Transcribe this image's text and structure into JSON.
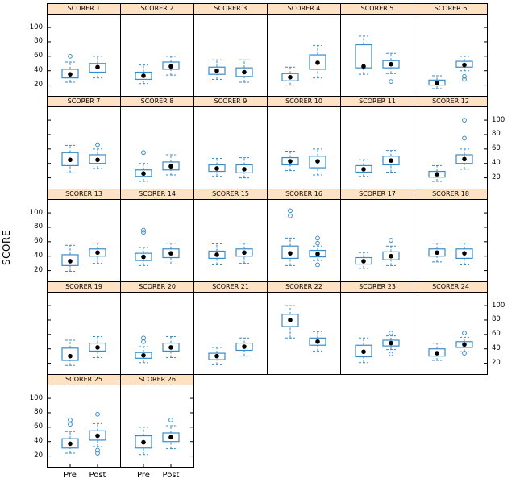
{
  "chart_data": {
    "type": "boxplot",
    "title": "",
    "ylabel": "SCORE",
    "x_categories": [
      "Pre",
      "Post"
    ],
    "y_ticks": [
      20,
      40,
      60,
      80,
      100
    ],
    "y_range": [
      5,
      118
    ],
    "columns": 6,
    "legend": "none",
    "strip_color": "#ffe2c3",
    "box_color": "#3a8bc7",
    "median_color": "#000000",
    "panels": [
      {
        "label": "SCORER 1",
        "pre": {
          "low": 24,
          "q1": 30,
          "med": 35,
          "q3": 42,
          "high": 52,
          "outliers": [
            60
          ]
        },
        "post": {
          "low": 30,
          "q1": 38,
          "med": 45,
          "q3": 50,
          "high": 60,
          "outliers": []
        }
      },
      {
        "label": "SCORER 2",
        "pre": {
          "low": 22,
          "q1": 28,
          "med": 33,
          "q3": 38,
          "high": 48,
          "outliers": []
        },
        "post": {
          "low": 34,
          "q1": 42,
          "med": 46,
          "q3": 52,
          "high": 60,
          "outliers": []
        }
      },
      {
        "label": "SCORER 3",
        "pre": {
          "low": 28,
          "q1": 35,
          "med": 40,
          "q3": 45,
          "high": 55,
          "outliers": []
        },
        "post": {
          "low": 24,
          "q1": 32,
          "med": 38,
          "q3": 44,
          "high": 55,
          "outliers": []
        }
      },
      {
        "label": "SCORER 4",
        "pre": {
          "low": 20,
          "q1": 26,
          "med": 31,
          "q3": 36,
          "high": 45,
          "outliers": []
        },
        "post": {
          "low": 30,
          "q1": 42,
          "med": 51,
          "q3": 62,
          "high": 75,
          "outliers": []
        }
      },
      {
        "label": "SCORER 5",
        "pre": {
          "low": 35,
          "q1": 44,
          "med": 46,
          "q3": 76,
          "high": 88,
          "outliers": []
        },
        "post": {
          "low": 36,
          "q1": 44,
          "med": 49,
          "q3": 54,
          "high": 64,
          "outliers": [
            25
          ]
        }
      },
      {
        "label": "SCORER 6",
        "pre": {
          "low": 15,
          "q1": 20,
          "med": 23,
          "q3": 27,
          "high": 33,
          "outliers": []
        },
        "post": {
          "low": 40,
          "q1": 45,
          "med": 48,
          "q3": 53,
          "high": 60,
          "outliers": [
            32,
            28
          ]
        }
      },
      {
        "label": "SCORER 7",
        "pre": {
          "low": 27,
          "q1": 37,
          "med": 45,
          "q3": 55,
          "high": 65,
          "outliers": []
        },
        "post": {
          "low": 33,
          "q1": 40,
          "med": 45,
          "q3": 52,
          "high": 60,
          "outliers": [
            66
          ]
        }
      },
      {
        "label": "SCORER 8",
        "pre": {
          "low": 15,
          "q1": 22,
          "med": 26,
          "q3": 31,
          "high": 40,
          "outliers": [
            55
          ]
        },
        "post": {
          "low": 24,
          "q1": 31,
          "med": 36,
          "q3": 42,
          "high": 52,
          "outliers": []
        }
      },
      {
        "label": "SCORER 9",
        "pre": {
          "low": 22,
          "q1": 29,
          "med": 33,
          "q3": 38,
          "high": 47,
          "outliers": []
        },
        "post": {
          "low": 20,
          "q1": 27,
          "med": 32,
          "q3": 38,
          "high": 48,
          "outliers": []
        }
      },
      {
        "label": "SCORER 10",
        "pre": {
          "low": 30,
          "q1": 38,
          "med": 43,
          "q3": 48,
          "high": 57,
          "outliers": []
        },
        "post": {
          "low": 24,
          "q1": 34,
          "med": 43,
          "q3": 50,
          "high": 60,
          "outliers": []
        }
      },
      {
        "label": "SCORER 11",
        "pre": {
          "low": 22,
          "q1": 28,
          "med": 32,
          "q3": 37,
          "high": 45,
          "outliers": []
        },
        "post": {
          "low": 28,
          "q1": 38,
          "med": 44,
          "q3": 50,
          "high": 58,
          "outliers": []
        }
      },
      {
        "label": "SCORER 12",
        "pre": {
          "low": 15,
          "q1": 21,
          "med": 25,
          "q3": 29,
          "high": 37,
          "outliers": []
        },
        "post": {
          "low": 32,
          "q1": 40,
          "med": 46,
          "q3": 52,
          "high": 60,
          "outliers": [
            75,
            100
          ]
        }
      },
      {
        "label": "SCORER 13",
        "pre": {
          "low": 19,
          "q1": 27,
          "med": 33,
          "q3": 42,
          "high": 55,
          "outliers": []
        },
        "post": {
          "low": 30,
          "q1": 40,
          "med": 45,
          "q3": 50,
          "high": 58,
          "outliers": []
        }
      },
      {
        "label": "SCORER 14",
        "pre": {
          "low": 27,
          "q1": 34,
          "med": 39,
          "q3": 44,
          "high": 52,
          "outliers": [
            73,
            76
          ]
        },
        "post": {
          "low": 29,
          "q1": 38,
          "med": 44,
          "q3": 50,
          "high": 58,
          "outliers": []
        }
      },
      {
        "label": "SCORER 15",
        "pre": {
          "low": 28,
          "q1": 37,
          "med": 42,
          "q3": 47,
          "high": 57,
          "outliers": []
        },
        "post": {
          "low": 30,
          "q1": 40,
          "med": 45,
          "q3": 50,
          "high": 58,
          "outliers": []
        }
      },
      {
        "label": "SCORER 16",
        "pre": {
          "low": 27,
          "q1": 37,
          "med": 44,
          "q3": 54,
          "high": 65,
          "outliers": [
            96,
            103
          ]
        },
        "post": {
          "low": 34,
          "q1": 39,
          "med": 43,
          "q3": 48,
          "high": 54,
          "outliers": [
            58,
            65,
            28
          ]
        }
      },
      {
        "label": "SCORER 17",
        "pre": {
          "low": 23,
          "q1": 29,
          "med": 33,
          "q3": 38,
          "high": 45,
          "outliers": []
        },
        "post": {
          "low": 27,
          "q1": 35,
          "med": 40,
          "q3": 46,
          "high": 54,
          "outliers": [
            62
          ]
        }
      },
      {
        "label": "SCORER 18",
        "pre": {
          "low": 32,
          "q1": 40,
          "med": 45,
          "q3": 50,
          "high": 58,
          "outliers": []
        },
        "post": {
          "low": 28,
          "q1": 37,
          "med": 44,
          "q3": 50,
          "high": 58,
          "outliers": []
        }
      },
      {
        "label": "SCORER 19",
        "pre": {
          "low": 17,
          "q1": 24,
          "med": 30,
          "q3": 41,
          "high": 52,
          "outliers": []
        },
        "post": {
          "low": 28,
          "q1": 37,
          "med": 42,
          "q3": 48,
          "high": 57,
          "outliers": []
        }
      },
      {
        "label": "SCORER 20",
        "pre": {
          "low": 21,
          "q1": 27,
          "med": 31,
          "q3": 35,
          "high": 43,
          "outliers": [
            50,
            55
          ]
        },
        "post": {
          "low": 28,
          "q1": 37,
          "med": 42,
          "q3": 48,
          "high": 57,
          "outliers": []
        }
      },
      {
        "label": "SCORER 21",
        "pre": {
          "low": 18,
          "q1": 25,
          "med": 30,
          "q3": 34,
          "high": 42,
          "outliers": []
        },
        "post": {
          "low": 30,
          "q1": 38,
          "med": 43,
          "q3": 48,
          "high": 55,
          "outliers": []
        }
      },
      {
        "label": "SCORER 22",
        "pre": {
          "low": 55,
          "q1": 71,
          "med": 80,
          "q3": 88,
          "high": 100,
          "outliers": []
        },
        "post": {
          "low": 37,
          "q1": 45,
          "med": 50,
          "q3": 55,
          "high": 64,
          "outliers": []
        }
      },
      {
        "label": "SCORER 23",
        "pre": {
          "low": 21,
          "q1": 29,
          "med": 36,
          "q3": 45,
          "high": 55,
          "outliers": []
        },
        "post": {
          "low": 39,
          "q1": 44,
          "med": 48,
          "q3": 52,
          "high": 58,
          "outliers": [
            62,
            33
          ]
        }
      },
      {
        "label": "SCORER 24",
        "pre": {
          "low": 24,
          "q1": 30,
          "med": 34,
          "q3": 40,
          "high": 48,
          "outliers": []
        },
        "post": {
          "low": 36,
          "q1": 42,
          "med": 46,
          "q3": 50,
          "high": 56,
          "outliers": [
            62,
            34
          ]
        }
      },
      {
        "label": "SCORER 25",
        "pre": {
          "low": 24,
          "q1": 31,
          "med": 37,
          "q3": 44,
          "high": 54,
          "outliers": [
            64,
            70
          ]
        },
        "post": {
          "low": 33,
          "q1": 42,
          "med": 48,
          "q3": 55,
          "high": 65,
          "outliers": [
            78,
            28,
            24
          ]
        }
      },
      {
        "label": "SCORER 26",
        "pre": {
          "low": 22,
          "q1": 31,
          "med": 39,
          "q3": 48,
          "high": 60,
          "outliers": []
        },
        "post": {
          "low": 30,
          "q1": 40,
          "med": 46,
          "q3": 52,
          "high": 62,
          "outliers": [
            70
          ]
        }
      }
    ]
  }
}
